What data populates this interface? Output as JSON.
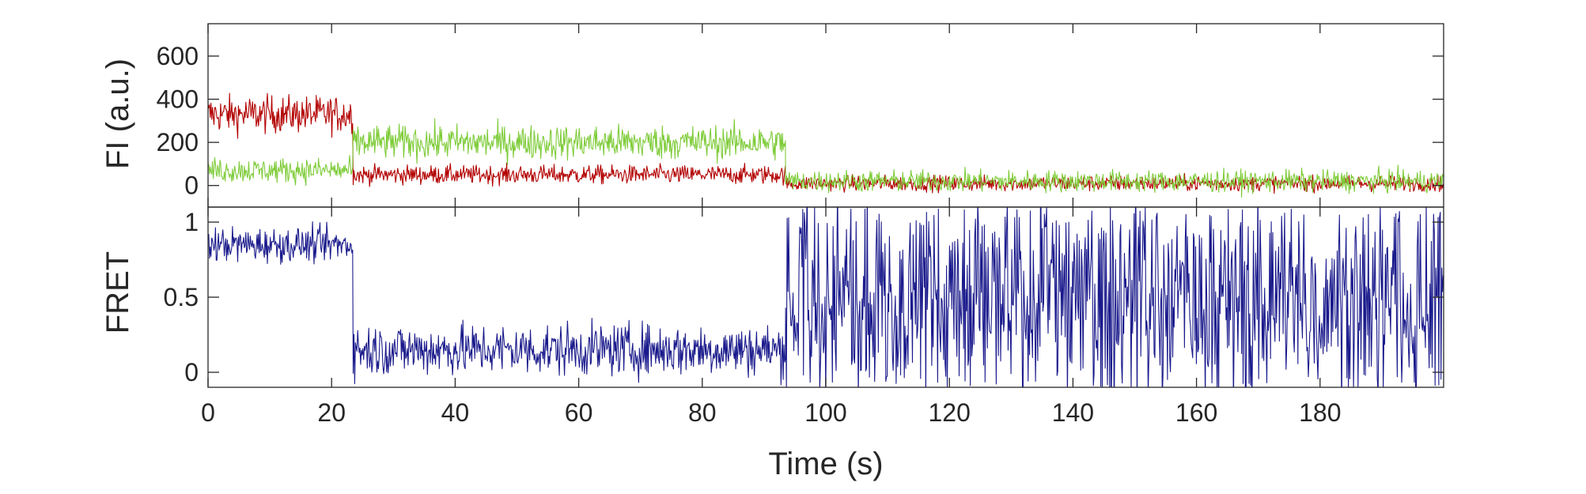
{
  "chart_data": [
    {
      "type": "line",
      "panel": "top",
      "ylabel": "FI (a.u.)",
      "xlabel": "",
      "xlim": [
        0,
        200
      ],
      "ylim": [
        -100,
        750
      ],
      "yticks": [
        0,
        200,
        400,
        600
      ],
      "ytick_labels": [
        "0",
        "200",
        "400",
        "600"
      ],
      "grid": false,
      "legend": "none",
      "series": [
        {
          "color": "#b30000",
          "segments": [
            {
              "x_start": 0,
              "x_end": 23.5,
              "mean": 330,
              "noise": 60
            },
            {
              "x_start": 23.5,
              "x_end": 93.5,
              "mean": 50,
              "noise": 30
            },
            {
              "x_start": 93.5,
              "x_end": 200,
              "mean": 10,
              "noise": 25
            }
          ]
        },
        {
          "color": "#7fcc3a",
          "segments": [
            {
              "x_start": 0,
              "x_end": 23.5,
              "mean": 70,
              "noise": 40
            },
            {
              "x_start": 23.5,
              "x_end": 93.5,
              "mean": 200,
              "noise": 55
            },
            {
              "x_start": 93.5,
              "x_end": 200,
              "mean": 20,
              "noise": 35
            }
          ]
        }
      ]
    },
    {
      "type": "line",
      "panel": "bottom",
      "ylabel": "FRET",
      "xlabel": "Time (s)",
      "xlim": [
        0,
        200
      ],
      "ylim": [
        -0.1,
        1.1
      ],
      "yticks": [
        0,
        0.5,
        1
      ],
      "ytick_labels": [
        "0",
        "0.5",
        "1"
      ],
      "xticks": [
        0,
        20,
        40,
        60,
        80,
        100,
        120,
        140,
        160,
        180
      ],
      "xtick_labels": [
        "0",
        "20",
        "40",
        "60",
        "80",
        "100",
        "120",
        "140",
        "160",
        "180"
      ],
      "grid": false,
      "legend": "none",
      "series": [
        {
          "color": "#1a1a8c",
          "segments": [
            {
              "x_start": 0,
              "x_end": 23.5,
              "mean": 0.85,
              "noise": 0.08
            },
            {
              "x_start": 23.5,
              "x_end": 93.5,
              "mean": 0.15,
              "noise": 0.12
            },
            {
              "x_start": 93.5,
              "x_end": 200,
              "mean": 0.5,
              "noise": 0.5
            }
          ]
        }
      ]
    }
  ]
}
